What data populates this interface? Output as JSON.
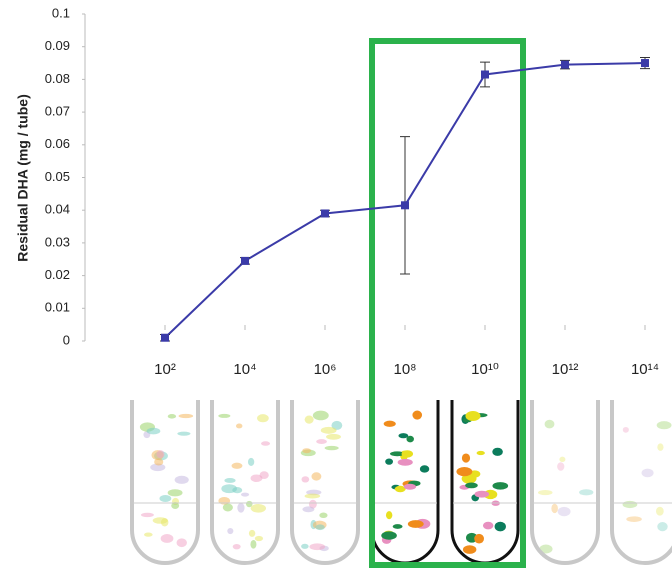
{
  "chart_data": {
    "type": "line",
    "y_label": "Residual DHA (mg / tube)",
    "categories": [
      "10²",
      "10⁴",
      "10⁶",
      "10⁸",
      "10¹⁰",
      "10¹²",
      "10¹⁴"
    ],
    "values": [
      0.001,
      0.0245,
      0.039,
      0.0415,
      0.0815,
      0.0845,
      0.085
    ],
    "errors": [
      0.001,
      0.001,
      0.001,
      0.021,
      0.0038,
      0.0013,
      0.0017
    ],
    "color": "#3b3ba8",
    "ylim": [
      0,
      0.1
    ],
    "yticks": [
      0,
      0.01,
      0.02,
      0.03,
      0.04,
      0.05,
      0.06,
      0.07,
      0.08,
      0.09,
      0.1
    ]
  }
}
